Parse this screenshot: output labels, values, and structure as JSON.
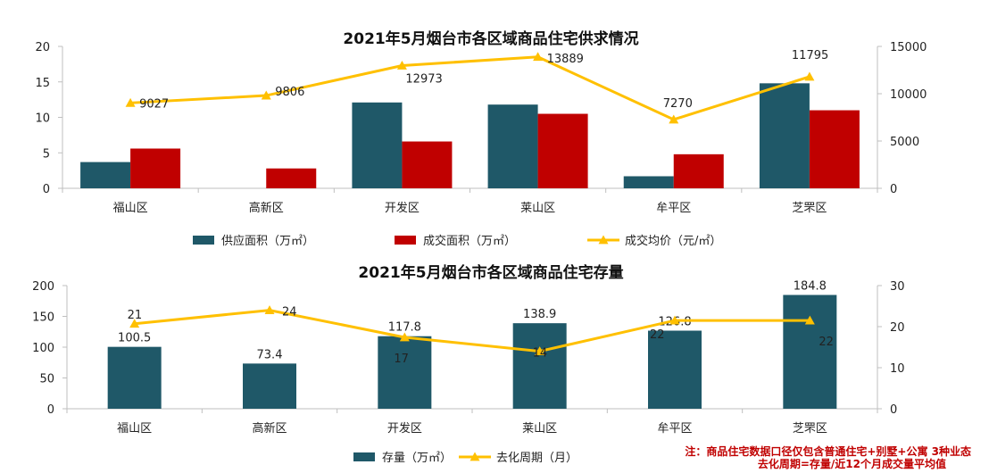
{
  "colors": {
    "teal": "#1f5868",
    "red": "#c00000",
    "gold": "#ffc000",
    "axis": "#bfbfbf"
  },
  "chart_data": [
    {
      "type": "bar",
      "title": "2021年5月烟台市各区域商品住宅供求情况",
      "categories": [
        "福山区",
        "高新区",
        "开发区",
        "莱山区",
        "牟平区",
        "芝罘区"
      ],
      "ylim": [
        0,
        20
      ],
      "y2lim": [
        0,
        15000
      ],
      "yticks": [
        "0",
        "5",
        "10",
        "15",
        "20"
      ],
      "y2ticks": [
        "0",
        "5000",
        "10000",
        "15000"
      ],
      "series": [
        {
          "name": "供应面积（万㎡）",
          "kind": "bar",
          "axis": "left",
          "color": "#1f5868",
          "values": [
            3.7,
            0,
            12.1,
            11.8,
            1.7,
            14.8
          ]
        },
        {
          "name": "成交面积（万㎡）",
          "kind": "bar",
          "axis": "left",
          "color": "#c00000",
          "values": [
            5.6,
            2.8,
            6.6,
            10.5,
            4.8,
            11.0
          ]
        },
        {
          "name": "成交均价（元/㎡）",
          "kind": "line",
          "axis": "right",
          "color": "#ffc000",
          "values": [
            9027,
            9806,
            12973,
            13889,
            7270,
            11795
          ],
          "labels": [
            "9027",
            "9806",
            "12973",
            "13889",
            "7270",
            "11795"
          ]
        }
      ],
      "legend": "bottom"
    },
    {
      "type": "bar",
      "title": "2021年5月烟台市各区域商品住宅存量",
      "categories": [
        "福山区",
        "高新区",
        "开发区",
        "莱山区",
        "牟平区",
        "芝罘区"
      ],
      "ylim": [
        0,
        200
      ],
      "y2lim": [
        0,
        30
      ],
      "yticks": [
        "0",
        "50",
        "100",
        "150",
        "200"
      ],
      "y2ticks": [
        "0",
        "10",
        "20",
        "30"
      ],
      "series": [
        {
          "name": "存量（万㎡）",
          "kind": "bar",
          "axis": "left",
          "color": "#1f5868",
          "values": [
            100.5,
            73.4,
            117.8,
            138.9,
            126.8,
            184.8
          ],
          "labels": [
            "100.5",
            "73.4",
            "117.8",
            "138.9",
            "126.8",
            "184.8"
          ]
        },
        {
          "name": "去化周期（月）",
          "kind": "line",
          "axis": "right",
          "color": "#ffc000",
          "values": [
            20.7,
            24.0,
            17.4,
            14.0,
            21.5,
            21.5
          ],
          "labels": [
            "21",
            "24",
            "17",
            "14",
            "22",
            "22"
          ]
        }
      ],
      "legend": "bottom"
    }
  ],
  "notes": [
    "注：商品住宅数据口径仅包含普通住宅+别墅+公寓  3种业态",
    "去化周期=存量/近12个月成交量平均值"
  ]
}
